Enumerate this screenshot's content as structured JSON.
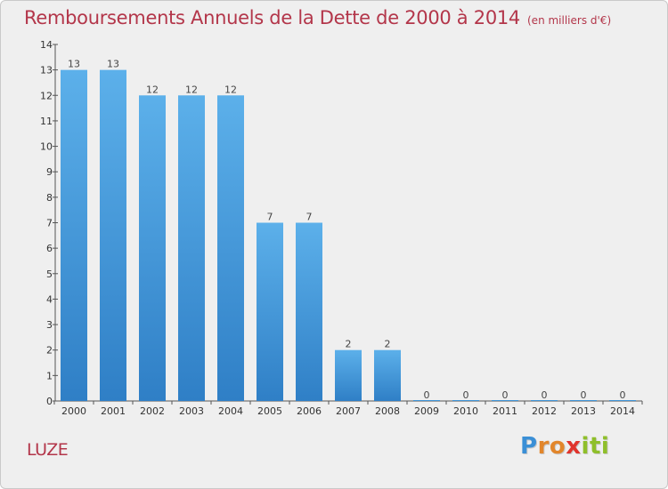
{
  "chart_data": {
    "type": "bar",
    "title": "Remboursements Annuels de la Dette de 2000 à 2014",
    "subtitle": "(en milliers d'€)",
    "categories": [
      "2000",
      "2001",
      "2002",
      "2003",
      "2004",
      "2005",
      "2006",
      "2007",
      "2008",
      "2009",
      "2010",
      "2011",
      "2012",
      "2013",
      "2014"
    ],
    "values": [
      13,
      13,
      12,
      12,
      12,
      7,
      7,
      2,
      2,
      0,
      0,
      0,
      0,
      0,
      0
    ],
    "ylim": [
      0,
      14
    ],
    "yticks": [
      0,
      1,
      2,
      3,
      4,
      5,
      6,
      7,
      8,
      9,
      10,
      11,
      12,
      13,
      14
    ],
    "xlabel": "",
    "ylabel": "",
    "grid": false,
    "legend": "none",
    "bar_color": "#3f93d6",
    "bar_color_light": "#5aaee8"
  },
  "footer": {
    "commune": "LUZE",
    "logo_letters": [
      "P",
      "r",
      "o",
      "x",
      "i",
      "t",
      "i"
    ]
  },
  "colors": {
    "title": "#b3364a",
    "background": "#efefef"
  }
}
